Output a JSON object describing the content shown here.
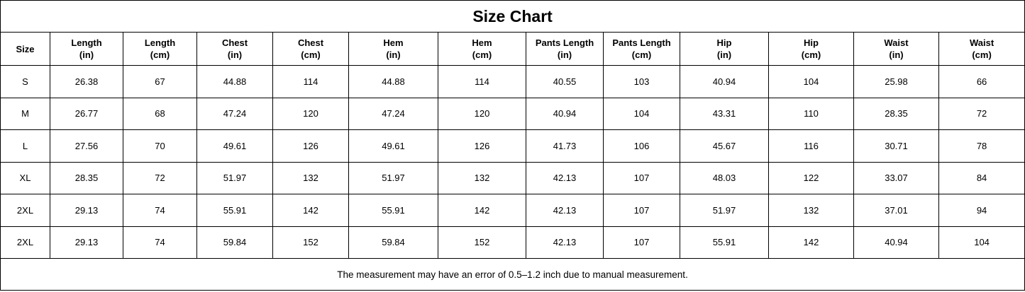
{
  "title": "Size Chart",
  "table": {
    "header": [
      {
        "lines": [
          "Size"
        ]
      },
      {
        "lines": [
          "Length",
          "(in)"
        ]
      },
      {
        "lines": [
          "Length",
          "(cm)"
        ]
      },
      {
        "lines": [
          "Chest",
          "(in)"
        ]
      },
      {
        "lines": [
          "Chest",
          "(cm)"
        ]
      },
      {
        "lines": [
          "Hem",
          "(in)"
        ]
      },
      {
        "lines": [
          "Hem",
          "(cm)"
        ]
      },
      {
        "lines": [
          "Pants Length",
          "(in)"
        ]
      },
      {
        "lines": [
          "Pants Length",
          "(cm)"
        ]
      },
      {
        "lines": [
          "Hip",
          "(in)"
        ]
      },
      {
        "lines": [
          "Hip",
          "(cm)"
        ]
      },
      {
        "lines": [
          "Waist",
          "(in)"
        ]
      },
      {
        "lines": [
          "Waist",
          "(cm)"
        ]
      }
    ],
    "rows": [
      [
        "S",
        "26.38",
        "67",
        "44.88",
        "114",
        "44.88",
        "114",
        "40.55",
        "103",
        "40.94",
        "104",
        "25.98",
        "66"
      ],
      [
        "M",
        "26.77",
        "68",
        "47.24",
        "120",
        "47.24",
        "120",
        "40.94",
        "104",
        "43.31",
        "110",
        "28.35",
        "72"
      ],
      [
        "L",
        "27.56",
        "70",
        "49.61",
        "126",
        "49.61",
        "126",
        "41.73",
        "106",
        "45.67",
        "116",
        "30.71",
        "78"
      ],
      [
        "XL",
        "28.35",
        "72",
        "51.97",
        "132",
        "51.97",
        "132",
        "42.13",
        "107",
        "48.03",
        "122",
        "33.07",
        "84"
      ],
      [
        "2XL",
        "29.13",
        "74",
        "55.91",
        "142",
        "55.91",
        "142",
        "42.13",
        "107",
        "51.97",
        "132",
        "37.01",
        "94"
      ],
      [
        "2XL",
        "29.13",
        "74",
        "59.84",
        "152",
        "59.84",
        "152",
        "42.13",
        "107",
        "55.91",
        "142",
        "40.94",
        "104"
      ]
    ]
  },
  "note": "The measurement may have an error of 0.5–1.2 inch due to manual measurement."
}
